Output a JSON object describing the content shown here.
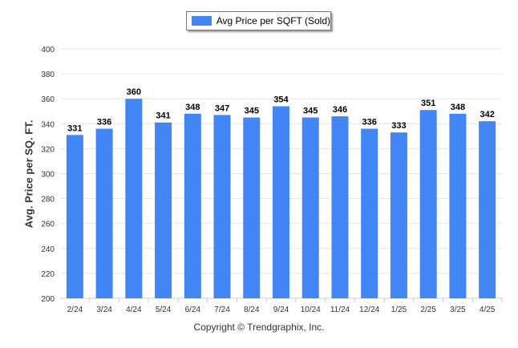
{
  "legend": {
    "label": "Avg Price per SQFT (Sold)"
  },
  "footer": {
    "copyright": "Copyright © Trendgraphix, Inc."
  },
  "colors": {
    "bar": "#4285f4",
    "grid": "#e6e6e6",
    "axis": "#cccccc",
    "tick_text": "#333333"
  },
  "chart_data": {
    "type": "bar",
    "title": "",
    "xlabel": "",
    "ylabel": "Avg. Price per SQ. FT.",
    "categories": [
      "2/24",
      "3/24",
      "4/24",
      "5/24",
      "6/24",
      "7/24",
      "8/24",
      "9/24",
      "10/24",
      "11/24",
      "12/24",
      "1/25",
      "2/25",
      "3/25",
      "4/25"
    ],
    "series": [
      {
        "name": "Avg Price per SQFT (Sold)",
        "values": [
          331,
          336,
          360,
          341,
          348,
          347,
          345,
          354,
          345,
          346,
          336,
          333,
          351,
          348,
          342
        ]
      }
    ],
    "ylim": [
      200,
      400
    ],
    "yticks": [
      200,
      220,
      240,
      260,
      280,
      300,
      320,
      340,
      360,
      380,
      400
    ],
    "data_labels": true,
    "grid": true,
    "legend_position": "top-center"
  }
}
